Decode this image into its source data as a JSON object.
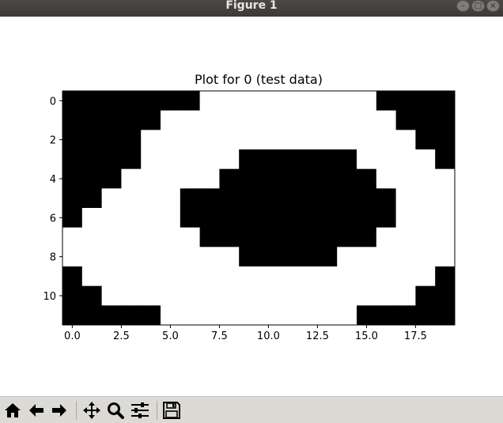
{
  "window": {
    "title": "Figure 1"
  },
  "toolbar": {
    "buttons": [
      {
        "name": "home-button",
        "icon": "home-icon"
      },
      {
        "name": "back-button",
        "icon": "arrow-left-icon"
      },
      {
        "name": "forward-button",
        "icon": "arrow-right-icon"
      },
      {
        "name": "pan-button",
        "icon": "move-icon"
      },
      {
        "name": "zoom-button",
        "icon": "magnifier-icon"
      },
      {
        "name": "configure-subplots-button",
        "icon": "sliders-icon"
      },
      {
        "name": "save-button",
        "icon": "floppy-disk-icon"
      }
    ]
  },
  "chart_data": {
    "type": "heatmap",
    "title": "Plot for 0 (test data)",
    "colormap": {
      "0": "#ffffff",
      "1": "#000000"
    },
    "xlim": [
      -0.5,
      19.5
    ],
    "ylim": [
      11.5,
      -0.5
    ],
    "xticks": [
      0.0,
      2.5,
      5.0,
      7.5,
      10.0,
      12.5,
      15.0,
      17.5
    ],
    "xtick_labels": [
      "0.0",
      "2.5",
      "5.0",
      "7.5",
      "10.0",
      "12.5",
      "15.0",
      "17.5"
    ],
    "yticks": [
      0,
      2,
      4,
      6,
      8,
      10
    ],
    "ytick_labels": [
      "0",
      "2",
      "4",
      "6",
      "8",
      "10"
    ],
    "grid": false,
    "matrix": [
      [
        1,
        1,
        1,
        1,
        1,
        1,
        1,
        0,
        0,
        0,
        0,
        0,
        0,
        0,
        0,
        0,
        1,
        1,
        1,
        1
      ],
      [
        1,
        1,
        1,
        1,
        1,
        0,
        0,
        0,
        0,
        0,
        0,
        0,
        0,
        0,
        0,
        0,
        0,
        1,
        1,
        1
      ],
      [
        1,
        1,
        1,
        1,
        0,
        0,
        0,
        0,
        0,
        0,
        0,
        0,
        0,
        0,
        0,
        0,
        0,
        0,
        1,
        1
      ],
      [
        1,
        1,
        1,
        1,
        0,
        0,
        0,
        0,
        0,
        1,
        1,
        1,
        1,
        1,
        1,
        0,
        0,
        0,
        0,
        1
      ],
      [
        1,
        1,
        1,
        0,
        0,
        0,
        0,
        0,
        1,
        1,
        1,
        1,
        1,
        1,
        1,
        1,
        0,
        0,
        0,
        0
      ],
      [
        1,
        1,
        0,
        0,
        0,
        0,
        1,
        1,
        1,
        1,
        1,
        1,
        1,
        1,
        1,
        1,
        1,
        0,
        0,
        0
      ],
      [
        1,
        0,
        0,
        0,
        0,
        0,
        1,
        1,
        1,
        1,
        1,
        1,
        1,
        1,
        1,
        1,
        1,
        0,
        0,
        0
      ],
      [
        0,
        0,
        0,
        0,
        0,
        0,
        0,
        1,
        1,
        1,
        1,
        1,
        1,
        1,
        1,
        1,
        0,
        0,
        0,
        0
      ],
      [
        0,
        0,
        0,
        0,
        0,
        0,
        0,
        0,
        0,
        1,
        1,
        1,
        1,
        1,
        0,
        0,
        0,
        0,
        0,
        0
      ],
      [
        1,
        0,
        0,
        0,
        0,
        0,
        0,
        0,
        0,
        0,
        0,
        0,
        0,
        0,
        0,
        0,
        0,
        0,
        0,
        1
      ],
      [
        1,
        1,
        0,
        0,
        0,
        0,
        0,
        0,
        0,
        0,
        0,
        0,
        0,
        0,
        0,
        0,
        0,
        0,
        1,
        1
      ],
      [
        1,
        1,
        1,
        1,
        1,
        0,
        0,
        0,
        0,
        0,
        0,
        0,
        0,
        0,
        0,
        1,
        1,
        1,
        1,
        1
      ]
    ]
  }
}
